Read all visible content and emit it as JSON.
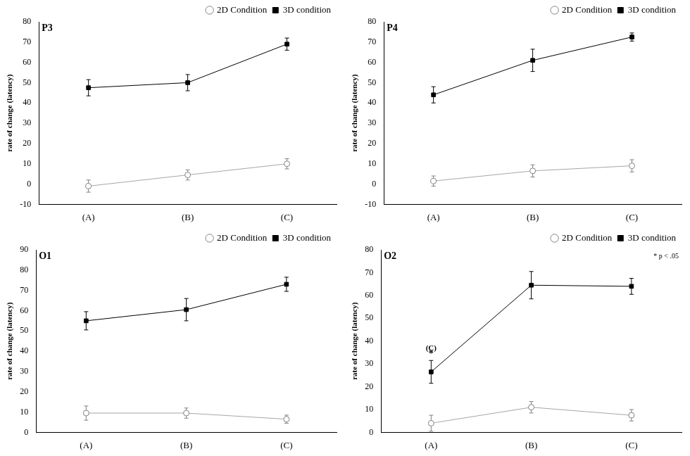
{
  "chart_data": [
    {
      "type": "line",
      "title": "P3",
      "y_label": "rate of change (latency)",
      "categories": [
        "(A)",
        "(B)",
        "(C)"
      ],
      "ylim": [
        -10,
        80
      ],
      "yticks": [
        -10,
        0,
        10,
        20,
        30,
        40,
        50,
        60,
        70,
        80
      ],
      "grid": false,
      "legend": "top-right",
      "series": [
        {
          "name": "2D Condition",
          "color": "#a6a6a6",
          "marker": "open_circle",
          "values": [
            -1,
            4.5,
            10
          ],
          "errors": [
            3,
            2.5,
            2.5
          ]
        },
        {
          "name": "3D condition",
          "color": "#000000",
          "marker": "square",
          "values": [
            47.5,
            50,
            69
          ],
          "errors": [
            4,
            4,
            3
          ]
        }
      ]
    },
    {
      "type": "line",
      "title": "P4",
      "y_label": "rate of change (latency)",
      "categories": [
        "(A)",
        "(B)",
        "(C)"
      ],
      "ylim": [
        -10,
        80
      ],
      "yticks": [
        -10,
        0,
        10,
        20,
        30,
        40,
        50,
        60,
        70,
        80
      ],
      "grid": false,
      "legend": "top-right",
      "series": [
        {
          "name": "2D Condition",
          "color": "#a6a6a6",
          "marker": "open_circle",
          "values": [
            1.5,
            6.5,
            9
          ],
          "errors": [
            2.5,
            3,
            3
          ]
        },
        {
          "name": "3D condition",
          "color": "#000000",
          "marker": "square",
          "values": [
            44,
            61,
            72.5
          ],
          "errors": [
            4,
            5.5,
            2
          ]
        }
      ]
    },
    {
      "type": "line",
      "title": "O1",
      "y_label": "rate of change (latency)",
      "categories": [
        "(A)",
        "(B)",
        "(C)"
      ],
      "ylim": [
        0,
        90
      ],
      "yticks": [
        0,
        10,
        20,
        30,
        40,
        50,
        60,
        70,
        80,
        90
      ],
      "grid": false,
      "legend": "top-right",
      "series": [
        {
          "name": "2D Condition",
          "color": "#a6a6a6",
          "marker": "open_circle",
          "values": [
            9.5,
            9.5,
            6.5
          ],
          "errors": [
            3.5,
            2.5,
            2
          ]
        },
        {
          "name": "3D condition",
          "color": "#000000",
          "marker": "square",
          "values": [
            55,
            60.5,
            73
          ],
          "errors": [
            4.5,
            5.5,
            3.5
          ]
        }
      ]
    },
    {
      "type": "line",
      "title": "O2",
      "y_label": "rate of change (latency)",
      "categories": [
        "(A)",
        "(B)",
        "(C)"
      ],
      "ylim": [
        0,
        80
      ],
      "yticks": [
        0,
        10,
        20,
        30,
        40,
        50,
        60,
        70,
        80
      ],
      "grid": false,
      "legend": "top-right",
      "note": "* p < .05",
      "annotations": [
        {
          "texts": [
            "(C)",
            "*"
          ],
          "category": "(A)",
          "series": "3D condition"
        }
      ],
      "series": [
        {
          "name": "2D Condition",
          "color": "#a6a6a6",
          "marker": "open_circle",
          "values": [
            4,
            11,
            7.5
          ],
          "errors": [
            3.5,
            2.5,
            2.5
          ]
        },
        {
          "name": "3D condition",
          "color": "#000000",
          "marker": "square",
          "values": [
            26.5,
            64.5,
            64
          ],
          "errors": [
            5,
            6,
            3.5
          ]
        }
      ]
    }
  ]
}
